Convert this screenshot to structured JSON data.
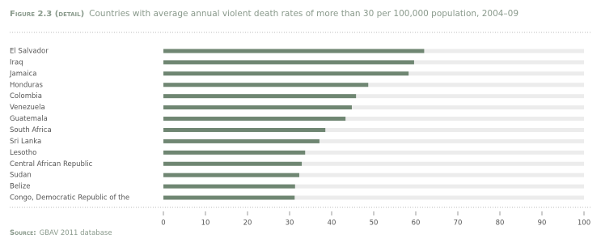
{
  "chart_data": {
    "type": "bar",
    "orientation": "horizontal",
    "figure_label": "Figure 2.3 (detail)",
    "title": "Countries with average annual violent death rates of more than 30 per 100,000 population, 2004–09",
    "categories": [
      "El Salvador",
      "Iraq",
      "Jamaica",
      "Honduras",
      "Colombia",
      "Venezuela",
      "Guatemala",
      "South Africa",
      "Sri Lanka",
      "Lesotho",
      "Central African Republic",
      "Sudan",
      "Belize",
      "Congo, Democratic Republic of the"
    ],
    "values": [
      62,
      59.6,
      58.3,
      48.7,
      45.8,
      44.8,
      43.3,
      38.5,
      37.1,
      33.7,
      32.9,
      32.3,
      31.3,
      31.2
    ],
    "color": "#6f8672",
    "xlim": [
      0,
      100
    ],
    "xticks": [
      0,
      10,
      20,
      30,
      40,
      50,
      60,
      70,
      80,
      90,
      100
    ],
    "source_label": "Source:",
    "source": "GBAV 2011 database"
  }
}
